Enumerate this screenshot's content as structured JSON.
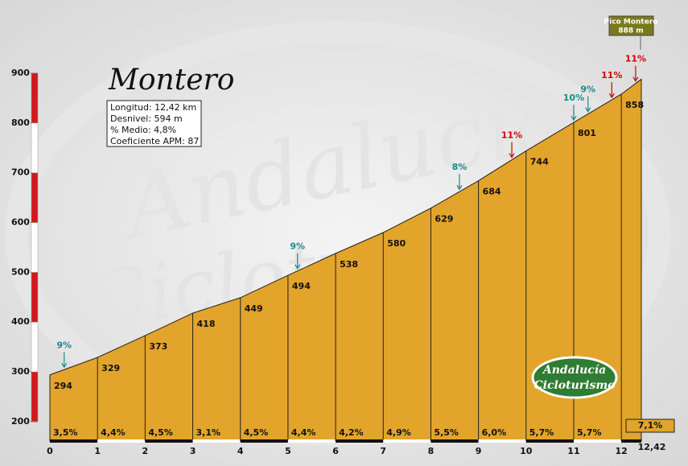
{
  "chart_data": {
    "type": "area",
    "title": "Montero",
    "info": [
      "Longitud: 12,42 km",
      "Desnivel: 594 m",
      "% Medio: 4,8%",
      "Coeficiente APM: 87"
    ],
    "summit": {
      "name": "Pico Montero",
      "label": "888 m"
    },
    "x": [
      0,
      1,
      2,
      3,
      4,
      5,
      6,
      7,
      8,
      9,
      10,
      11,
      12,
      12.42
    ],
    "values": [
      294,
      329,
      373,
      418,
      449,
      494,
      538,
      580,
      629,
      684,
      744,
      801,
      858,
      888
    ],
    "color": "#e2a42a",
    "gradients": [
      3.5,
      4.4,
      4.5,
      3.1,
      4.5,
      4.4,
      4.2,
      4.9,
      5.5,
      6.0,
      5.7,
      5.7,
      7.1
    ],
    "gradient_labels": [
      "3,5%",
      "4,4%",
      "4,5%",
      "3,1%",
      "4,5%",
      "4,4%",
      "4,2%",
      "4,9%",
      "5,5%",
      "6,0%",
      "5,7%",
      "5,7%",
      "7,1%"
    ],
    "peaks": [
      {
        "x": 0.3,
        "value": 9,
        "label": "9%",
        "color": "#1a8a8a"
      },
      {
        "x": 5.2,
        "value": 9,
        "label": "9%",
        "color": "#1a8a8a"
      },
      {
        "x": 8.6,
        "value": 8,
        "label": "8%",
        "color": "#1a8a8a"
      },
      {
        "x": 9.7,
        "value": 11,
        "label": "11%",
        "color": "#d40000"
      },
      {
        "x": 11.0,
        "value": 10,
        "label": "10%",
        "color": "#1a8a8a"
      },
      {
        "x": 11.3,
        "value": 9,
        "label": "9%",
        "color": "#1a8a8a"
      },
      {
        "x": 11.8,
        "value": 11,
        "label": "11%",
        "color": "#d40000"
      },
      {
        "x": 12.3,
        "value": 11,
        "label": "11%",
        "color": "#d40000"
      }
    ],
    "xlim": [
      0,
      12.42
    ],
    "xticks": [
      0,
      1,
      2,
      3,
      4,
      5,
      6,
      7,
      8,
      9,
      10,
      11,
      12,
      {
        "value": 12.42,
        "label": "12,42"
      }
    ],
    "ylim": [
      161,
      900
    ],
    "yticks": [
      200,
      300,
      400,
      500,
      600,
      700,
      800,
      900
    ],
    "logo": [
      "Andalucía",
      "Cicloturismo"
    ]
  }
}
